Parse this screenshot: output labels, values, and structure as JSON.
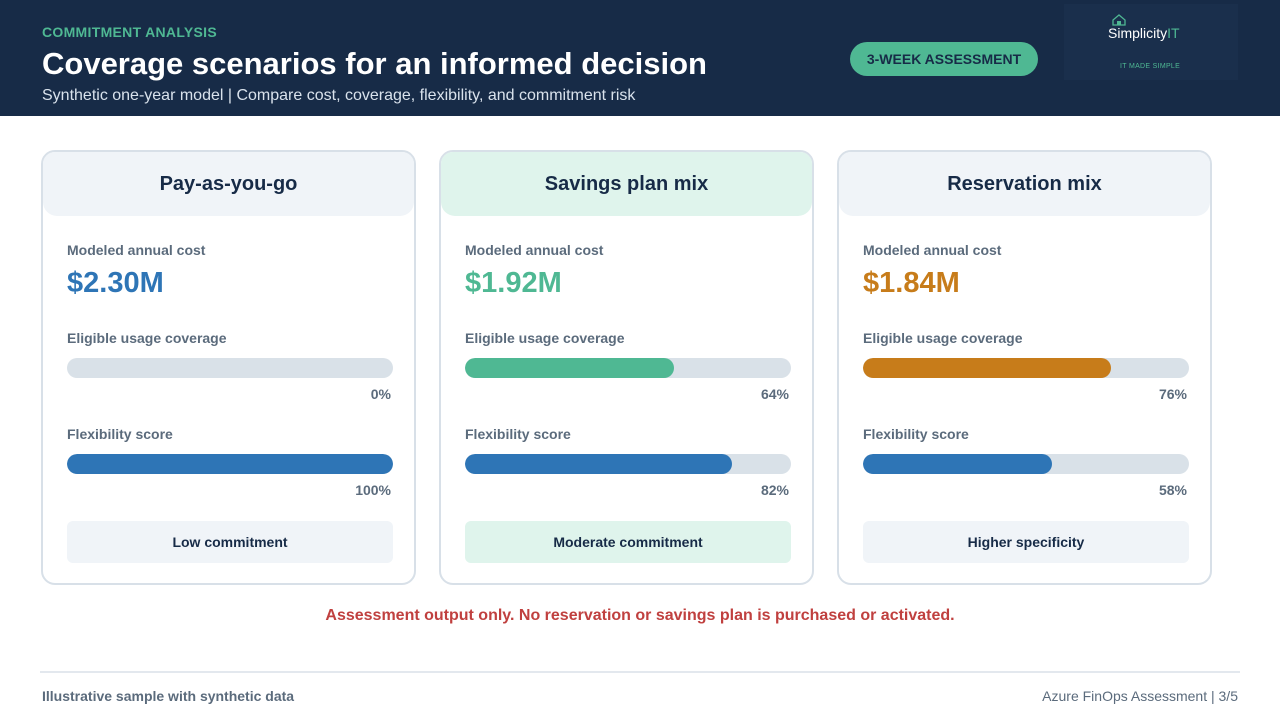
{
  "header": {
    "eyebrow": "COMMITMENT ANALYSIS",
    "title": "Coverage scenarios for an informed decision",
    "subtitle": "Synthetic one-year model | Compare cost, coverage, flexibility, and commitment risk",
    "badge": "3-WEEK ASSESSMENT",
    "logo": {
      "name_main": "Simplicity",
      "name_accent": "IT",
      "tagline": "IT MADE SIMPLE",
      "icon": "cloud-house-icon"
    }
  },
  "scenarios": [
    {
      "title": "Pay-as-you-go",
      "cost_label": "Modeled annual cost",
      "cost": "$2.30M",
      "coverage_label": "Eligible usage coverage",
      "coverage": 0,
      "coverage_text": "0%",
      "flex_label": "Flexibility score",
      "flex": 100,
      "flex_text": "100%",
      "commitment": "Low commitment",
      "accent": "#2e75b6"
    },
    {
      "title": "Savings plan mix",
      "cost_label": "Modeled annual cost",
      "cost": "$1.92M",
      "coverage_label": "Eligible usage coverage",
      "coverage": 64,
      "coverage_text": "64%",
      "flex_label": "Flexibility score",
      "flex": 82,
      "flex_text": "82%",
      "commitment": "Moderate commitment",
      "accent": "#4fb893"
    },
    {
      "title": "Reservation mix",
      "cost_label": "Modeled annual cost",
      "cost": "$1.84M",
      "coverage_label": "Eligible usage coverage",
      "coverage": 76,
      "coverage_text": "76%",
      "flex_label": "Flexibility score",
      "flex": 58,
      "flex_text": "58%",
      "commitment": "Higher specificity",
      "accent": "#c77c1a"
    }
  ],
  "colors": {
    "flex_bar": "#2e75b6",
    "track": "#d9e1e8"
  },
  "disclaimer": "Assessment output only. No reservation or savings plan is purchased or activated.",
  "footer": {
    "left": "Illustrative sample with synthetic data",
    "right": "Azure FinOps Assessment | 3/5"
  }
}
